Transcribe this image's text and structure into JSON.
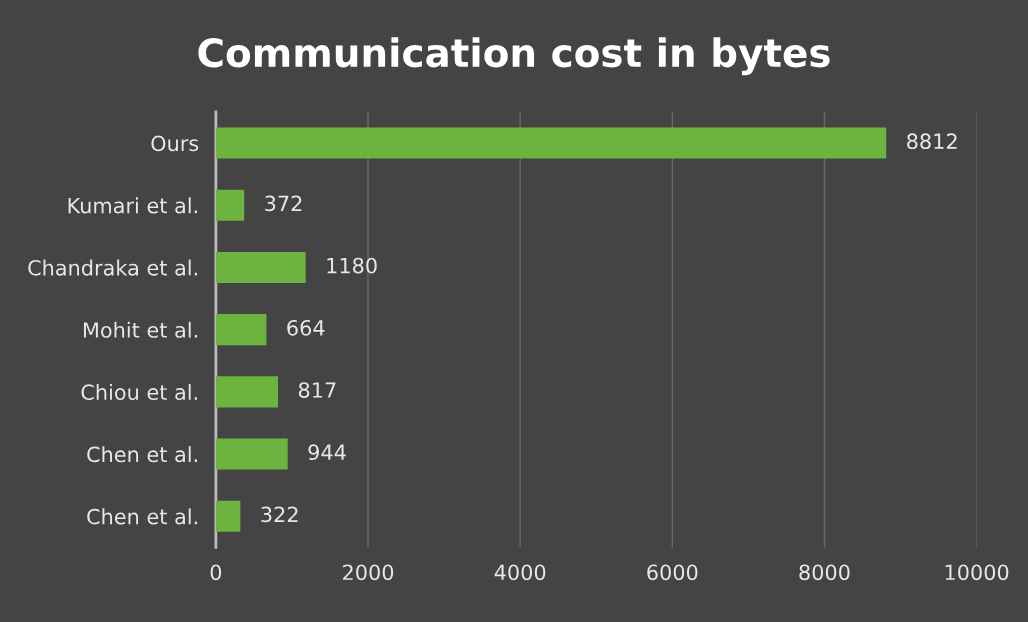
{
  "chart_data": {
    "type": "bar",
    "orientation": "horizontal",
    "title": "Communication cost in bytes",
    "categories": [
      "Ours",
      "Kumari et al.",
      "Chandraka et al.",
      "Mohit et al.",
      "Chiou et al.",
      "Chen et al.",
      "Chen et al."
    ],
    "values": [
      8812,
      372,
      1180,
      664,
      817,
      944,
      322
    ],
    "color": "#6db33f",
    "xlim": [
      0,
      10000
    ],
    "xticks": [
      0,
      2000,
      4000,
      6000,
      8000,
      10000
    ],
    "grid": "x",
    "data_labels": true
  }
}
